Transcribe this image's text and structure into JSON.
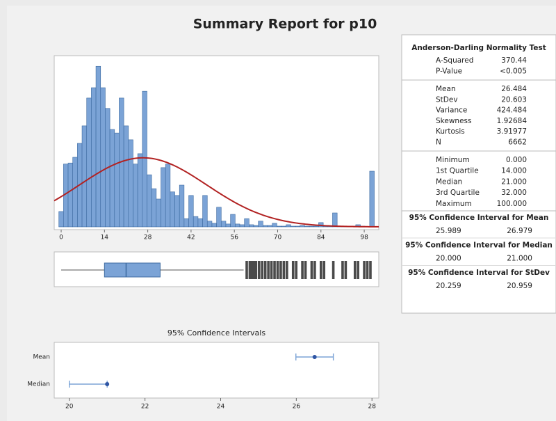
{
  "title": "Summary Report for p10",
  "chart_data": [
    {
      "type": "histogram",
      "bins": [
        -0.75,
        0.75,
        2.25,
        3.75,
        5.25,
        6.75,
        8.25,
        9.75,
        11.25,
        12.75,
        14.25,
        15.75,
        17.25,
        18.75,
        20.25,
        21.75,
        23.25,
        24.75,
        26.25,
        27.75,
        29.25,
        30.75,
        32.25,
        33.75,
        35.25,
        36.75,
        38.25,
        39.75,
        41.25,
        42.75,
        44.25,
        45.75,
        47.25,
        48.75,
        50.25,
        51.75,
        53.25,
        54.75,
        56.25,
        57.75,
        59.25,
        60.75,
        62.25,
        63.75,
        65.25,
        66.75,
        68.25,
        69.75,
        71.25,
        72.75,
        74.25,
        75.75,
        77.25,
        78.75,
        80.25,
        81.75,
        83.25,
        84.75,
        86.25,
        87.75,
        89.25,
        90.75,
        92.25,
        93.75,
        95.25,
        96.75,
        98.25,
        99.75,
        101.25
      ],
      "values": [
        43,
        176,
        179,
        195,
        234,
        283,
        361,
        390,
        450,
        390,
        332,
        273,
        263,
        361,
        283,
        244,
        176,
        205,
        380,
        146,
        107,
        78,
        166,
        176,
        98,
        88,
        117,
        23,
        88,
        29,
        23,
        88,
        16,
        10,
        55,
        16,
        8,
        35,
        8,
        6,
        23,
        6,
        4,
        16,
        4,
        4,
        10,
        2,
        2,
        6,
        2,
        2,
        4,
        2,
        2,
        2,
        12,
        2,
        2,
        39,
        2,
        2,
        2,
        2,
        6,
        2,
        0,
        156
      ],
      "color": "#7ba3d6",
      "xlim": [
        -2.25,
        102.7
      ],
      "ylim": [
        0,
        470
      ],
      "xticks": [
        0,
        14,
        28,
        42,
        56,
        70,
        84,
        98
      ],
      "normal_fit": {
        "mean": 26.484,
        "sd": 20.603,
        "n": 6662,
        "color": "#b22222"
      }
    },
    {
      "type": "box",
      "min": 0,
      "q1": 14,
      "median": 21,
      "q3": 32,
      "whisker_high": 59,
      "outliers": [
        60,
        61,
        61.5,
        62,
        62.5,
        63,
        64,
        65,
        66,
        67,
        68,
        69,
        70,
        71,
        72,
        73,
        75,
        76,
        78,
        79,
        81,
        82,
        84,
        85,
        88,
        91,
        92,
        95,
        96,
        98,
        99,
        100
      ],
      "color": "#7ba3d6",
      "xlim": [
        -2.25,
        102.7
      ]
    },
    {
      "type": "interval",
      "title": "95% Confidence Intervals",
      "categories": [
        "Mean",
        "Median"
      ],
      "values": [
        26.484,
        21
      ],
      "lower": [
        25.989,
        20
      ],
      "upper": [
        26.979,
        21
      ],
      "color": "#2f55a4",
      "xlim": [
        19.6,
        28.18
      ],
      "xticks": [
        20,
        22,
        24,
        26,
        28
      ]
    }
  ],
  "summary": {
    "header": "Anderson-Darling Normality Test",
    "groups": [
      [
        [
          "A-Squared",
          "370.44"
        ],
        [
          "P-Value",
          "<0.005"
        ]
      ],
      [
        [
          "Mean",
          "26.484"
        ],
        [
          "StDev",
          "20.603"
        ],
        [
          "Variance",
          "424.484"
        ],
        [
          "Skewness",
          "1.92684"
        ],
        [
          "Kurtosis",
          "3.91977"
        ],
        [
          "N",
          "6662"
        ]
      ],
      [
        [
          "Minimum",
          "0.000"
        ],
        [
          "1st Quartile",
          "14.000"
        ],
        [
          "Median",
          "21.000"
        ],
        [
          "3rd Quartile",
          "32.000"
        ],
        [
          "Maximum",
          "100.000"
        ]
      ]
    ],
    "intervals": [
      {
        "title": "95% Confidence Interval for Mean",
        "low": "25.989",
        "high": "26.979"
      },
      {
        "title": "95% Confidence Interval for Median",
        "low": "20.000",
        "high": "21.000"
      },
      {
        "title": "95% Confidence Interval for StDev",
        "low": "20.259",
        "high": "20.959"
      }
    ]
  }
}
